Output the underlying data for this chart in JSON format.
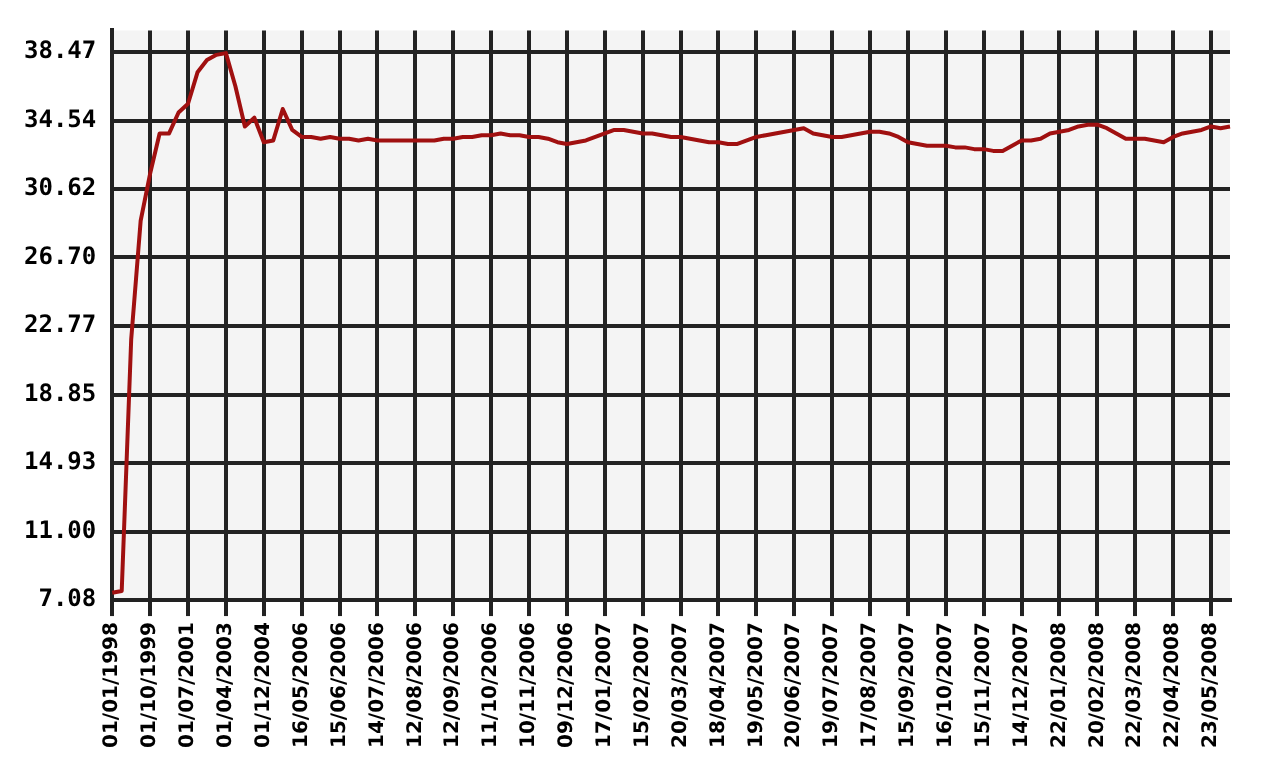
{
  "chart_data": {
    "type": "line",
    "categories": [
      "01/01/1998",
      null,
      null,
      null,
      "01/10/1999",
      null,
      null,
      null,
      "01/07/2001",
      null,
      null,
      null,
      "01/04/2003",
      null,
      null,
      null,
      "01/12/2004",
      null,
      null,
      null,
      "16/05/2006",
      null,
      null,
      null,
      "15/06/2006",
      null,
      null,
      null,
      "14/07/2006",
      null,
      null,
      null,
      "12/08/2006",
      null,
      null,
      null,
      "12/09/2006",
      null,
      null,
      null,
      "11/10/2006",
      null,
      null,
      null,
      "10/11/2006",
      null,
      null,
      null,
      "09/12/2006",
      null,
      null,
      null,
      "17/01/2007",
      null,
      null,
      null,
      "15/02/2007",
      null,
      null,
      null,
      "20/03/2007",
      null,
      null,
      null,
      "18/04/2007",
      null,
      null,
      null,
      "19/05/2007",
      null,
      null,
      null,
      "20/06/2007",
      null,
      null,
      null,
      "19/07/2007",
      null,
      null,
      null,
      "17/08/2007",
      null,
      null,
      null,
      "15/09/2007",
      null,
      null,
      null,
      "16/10/2007",
      null,
      null,
      null,
      "15/11/2007",
      null,
      null,
      null,
      "14/12/2007",
      null,
      null,
      null,
      "22/01/2008",
      null,
      null,
      null,
      "20/02/2008",
      null,
      null,
      null,
      "22/03/2008",
      null,
      null,
      null,
      "22/04/2008",
      null,
      null,
      null,
      "23/05/2008",
      null,
      null
    ],
    "series": [
      {
        "color": "#a01010",
        "values": [
          7.5,
          7.6,
          22,
          28.8,
          31.5,
          33.8,
          33.8,
          35.0,
          35.5,
          37.3,
          38.0,
          38.3,
          38.4,
          36.5,
          34.2,
          34.7,
          33.3,
          33.4,
          35.2,
          34.0,
          33.6,
          33.6,
          33.5,
          33.6,
          33.5,
          33.5,
          33.4,
          33.5,
          33.4,
          33.4,
          33.4,
          33.4,
          33.4,
          33.4,
          33.4,
          33.5,
          33.5,
          33.6,
          33.6,
          33.7,
          33.7,
          33.8,
          33.7,
          33.7,
          33.6,
          33.6,
          33.5,
          33.3,
          33.2,
          33.3,
          33.4,
          33.6,
          33.8,
          34.0,
          34.0,
          33.9,
          33.8,
          33.8,
          33.7,
          33.6,
          33.6,
          33.5,
          33.4,
          33.3,
          33.3,
          33.2,
          33.2,
          33.4,
          33.6,
          33.7,
          33.8,
          33.9,
          34.0,
          34.1,
          33.8,
          33.7,
          33.6,
          33.6,
          33.7,
          33.8,
          33.9,
          33.9,
          33.8,
          33.6,
          33.3,
          33.2,
          33.1,
          33.1,
          33.1,
          33.0,
          33.0,
          32.9,
          32.9,
          32.8,
          32.8,
          33.1,
          33.4,
          33.4,
          33.5,
          33.8,
          33.9,
          34.0,
          34.2,
          34.3,
          34.3,
          34.1,
          33.8,
          33.5,
          33.5,
          33.5,
          33.4,
          33.3,
          33.6,
          33.8,
          33.9,
          34.0,
          34.2,
          34.1,
          34.2
        ]
      }
    ],
    "ylim": [
      7.08,
      39.7
    ],
    "yticks": [
      7.08,
      {
        "value": 11,
        "label": "11.00"
      },
      14.93,
      18.85,
      22.77,
      {
        "value": 26.7,
        "label": "26.70"
      },
      30.62,
      34.54,
      38.47
    ],
    "grid": true,
    "legend": false,
    "marker": "none",
    "line_style": "solid"
  }
}
